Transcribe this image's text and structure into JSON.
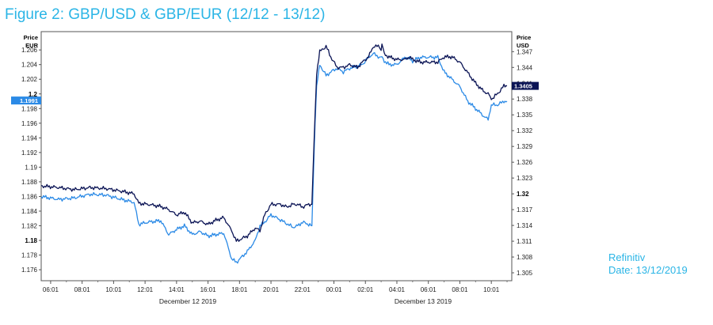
{
  "title": "Figure 2: GBP/USD & GBP/EUR (12/12 - 13/12)",
  "source": {
    "line1": "Refinitiv",
    "line2": "Date: 13/12/2019"
  },
  "colors": {
    "gbpusd": "#0b1455",
    "gbpeur": "#2b8ae6",
    "title": "#2bb5e6",
    "usd_flag": "#0b1455",
    "eur_flag": "#2b8ae6"
  },
  "chart_data": {
    "type": "line",
    "left_axis": {
      "label_line1": "Price",
      "label_line2": "EUR",
      "ylim": [
        1.1745,
        1.2085
      ],
      "ticks": [
        "1.176",
        "1.178",
        "1.18",
        "1.182",
        "1.184",
        "1.186",
        "1.188",
        "1.19",
        "1.192",
        "1.194",
        "1.196",
        "1.198",
        "1.2",
        "1.202",
        "1.204",
        "1.206"
      ],
      "bold_ticks": [
        "1.18",
        "1.2"
      ],
      "current_value": "1.1991"
    },
    "right_axis": {
      "label_line1": "Price",
      "label_line2": "USD",
      "ylim": [
        1.3035,
        1.3508
      ],
      "ticks": [
        "1.305",
        "1.308",
        "1.311",
        "1.314",
        "1.317",
        "1.32",
        "1.323",
        "1.326",
        "1.329",
        "1.332",
        "1.335",
        "1.338",
        "1.341",
        "1.344",
        "1.347"
      ],
      "bold_ticks": [
        "1.32"
      ],
      "current_value": "1.3405"
    },
    "x_axis": {
      "range_hours": [
        -0.6,
        29.3
      ],
      "time_ticks": [
        "06:01",
        "08:01",
        "10:01",
        "12:01",
        "14:01",
        "16:01",
        "18:01",
        "20:01",
        "22:01",
        "00:01",
        "02:01",
        "04:01",
        "06:01",
        "08:01",
        "10:01"
      ],
      "date_labels": [
        "December 12 2019",
        "December 13 2019"
      ]
    },
    "series": [
      {
        "axis": "right",
        "x": [
          -0.6,
          0.5,
          1.5,
          2.5,
          3.5,
          4.5,
          5.3,
          5.6,
          6.2,
          7.0,
          7.5,
          8.0,
          8.5,
          9.0,
          9.5,
          10.0,
          10.5,
          11.0,
          11.5,
          11.8,
          12.5,
          13.0,
          13.3,
          13.6,
          14.0,
          14.6,
          15.0,
          15.4,
          15.7,
          16.0,
          16.4,
          16.6,
          16.8,
          16.9,
          17.1,
          17.5,
          17.8,
          18.2,
          18.6,
          19.0,
          19.5,
          19.8,
          20.2,
          20.5,
          20.9,
          21.0,
          21.05,
          21.2,
          21.5,
          22.0,
          22.5,
          22.8,
          23.0,
          23.5,
          24.0,
          24.6,
          25.0,
          25.5,
          26.0,
          26.5,
          27.0,
          27.5,
          27.8,
          28.0,
          28.4,
          28.8,
          29.0
        ],
        "y": [
          1.3215,
          1.3212,
          1.3208,
          1.3212,
          1.321,
          1.3205,
          1.32,
          1.3182,
          1.318,
          1.3176,
          1.317,
          1.316,
          1.3165,
          1.3145,
          1.3148,
          1.3142,
          1.315,
          1.3155,
          1.313,
          1.311,
          1.312,
          1.3135,
          1.313,
          1.316,
          1.318,
          1.318,
          1.3175,
          1.318,
          1.318,
          1.3175,
          1.318,
          1.318,
          1.335,
          1.343,
          1.347,
          1.348,
          1.346,
          1.344,
          1.344,
          1.3445,
          1.344,
          1.345,
          1.346,
          1.348,
          1.348,
          1.3475,
          1.3485,
          1.3465,
          1.346,
          1.3455,
          1.3455,
          1.346,
          1.3455,
          1.345,
          1.345,
          1.345,
          1.346,
          1.346,
          1.345,
          1.343,
          1.341,
          1.3395,
          1.339,
          1.338,
          1.339,
          1.3405,
          1.3405
        ]
      },
      {
        "axis": "left",
        "x": [
          -0.6,
          0.5,
          1.5,
          2.5,
          3.5,
          4.5,
          5.3,
          5.6,
          6.2,
          7.0,
          7.5,
          8.0,
          8.5,
          9.0,
          9.5,
          10.0,
          10.5,
          11.0,
          11.5,
          11.8,
          12.5,
          13.0,
          13.3,
          13.6,
          14.0,
          14.6,
          15.0,
          15.4,
          15.7,
          16.0,
          16.4,
          16.6,
          16.8,
          16.9,
          17.1,
          17.5,
          17.8,
          18.2,
          18.6,
          19.0,
          19.5,
          19.8,
          20.2,
          20.5,
          20.9,
          21.0,
          21.05,
          21.2,
          21.5,
          22.0,
          22.5,
          22.8,
          23.0,
          23.5,
          24.0,
          24.6,
          25.0,
          25.5,
          26.0,
          26.5,
          27.0,
          27.5,
          27.8,
          28.0,
          28.4,
          28.8,
          29.0
        ],
        "y": [
          1.186,
          1.1856,
          1.1858,
          1.1863,
          1.1862,
          1.1856,
          1.1852,
          1.1822,
          1.1825,
          1.1827,
          1.1808,
          1.1815,
          1.182,
          1.1808,
          1.1812,
          1.1806,
          1.1808,
          1.181,
          1.1775,
          1.177,
          1.1785,
          1.18,
          1.182,
          1.1825,
          1.1835,
          1.1828,
          1.1823,
          1.1818,
          1.182,
          1.1825,
          1.1822,
          1.182,
          1.196,
          1.201,
          1.204,
          1.2025,
          1.203,
          1.2035,
          1.203,
          1.2035,
          1.2038,
          1.204,
          1.205,
          1.2055,
          1.205,
          1.2048,
          1.205,
          1.2045,
          1.204,
          1.204,
          1.205,
          1.2048,
          1.2045,
          1.205,
          1.205,
          1.205,
          1.203,
          1.202,
          1.201,
          1.199,
          1.198,
          1.197,
          1.1965,
          1.1985,
          1.1985,
          1.199,
          1.199
        ]
      }
    ]
  }
}
